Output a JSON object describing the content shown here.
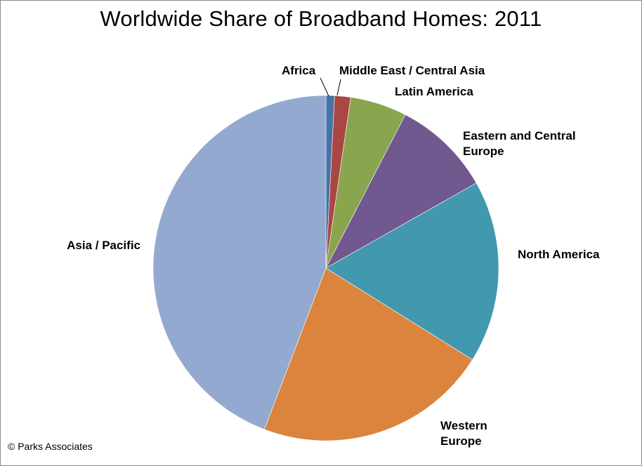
{
  "chart_data": {
    "type": "pie",
    "title": "Worldwide Share of Broadband Homes: 2011",
    "start_angle_deg": 0,
    "direction": "clockwise",
    "slices": [
      {
        "label": "Africa",
        "value": 0.8,
        "color": "#4572A7"
      },
      {
        "label": "Middle East / Central Asia",
        "value": 1.5,
        "color": "#AA4643"
      },
      {
        "label": "Latin America",
        "value": 5.3,
        "color": "#89A54E"
      },
      {
        "label": "Eastern and Central Europe",
        "value": 9.2,
        "color": "#71588F"
      },
      {
        "label": "North America",
        "value": 17.1,
        "color": "#4198AF"
      },
      {
        "label": "Western Europe",
        "value": 21.9,
        "color": "#DB843D"
      },
      {
        "label": "Asia / Pacific",
        "value": 44.2,
        "color": "#93A9CF"
      }
    ]
  },
  "footer": {
    "copyright": "© Parks Associates"
  }
}
